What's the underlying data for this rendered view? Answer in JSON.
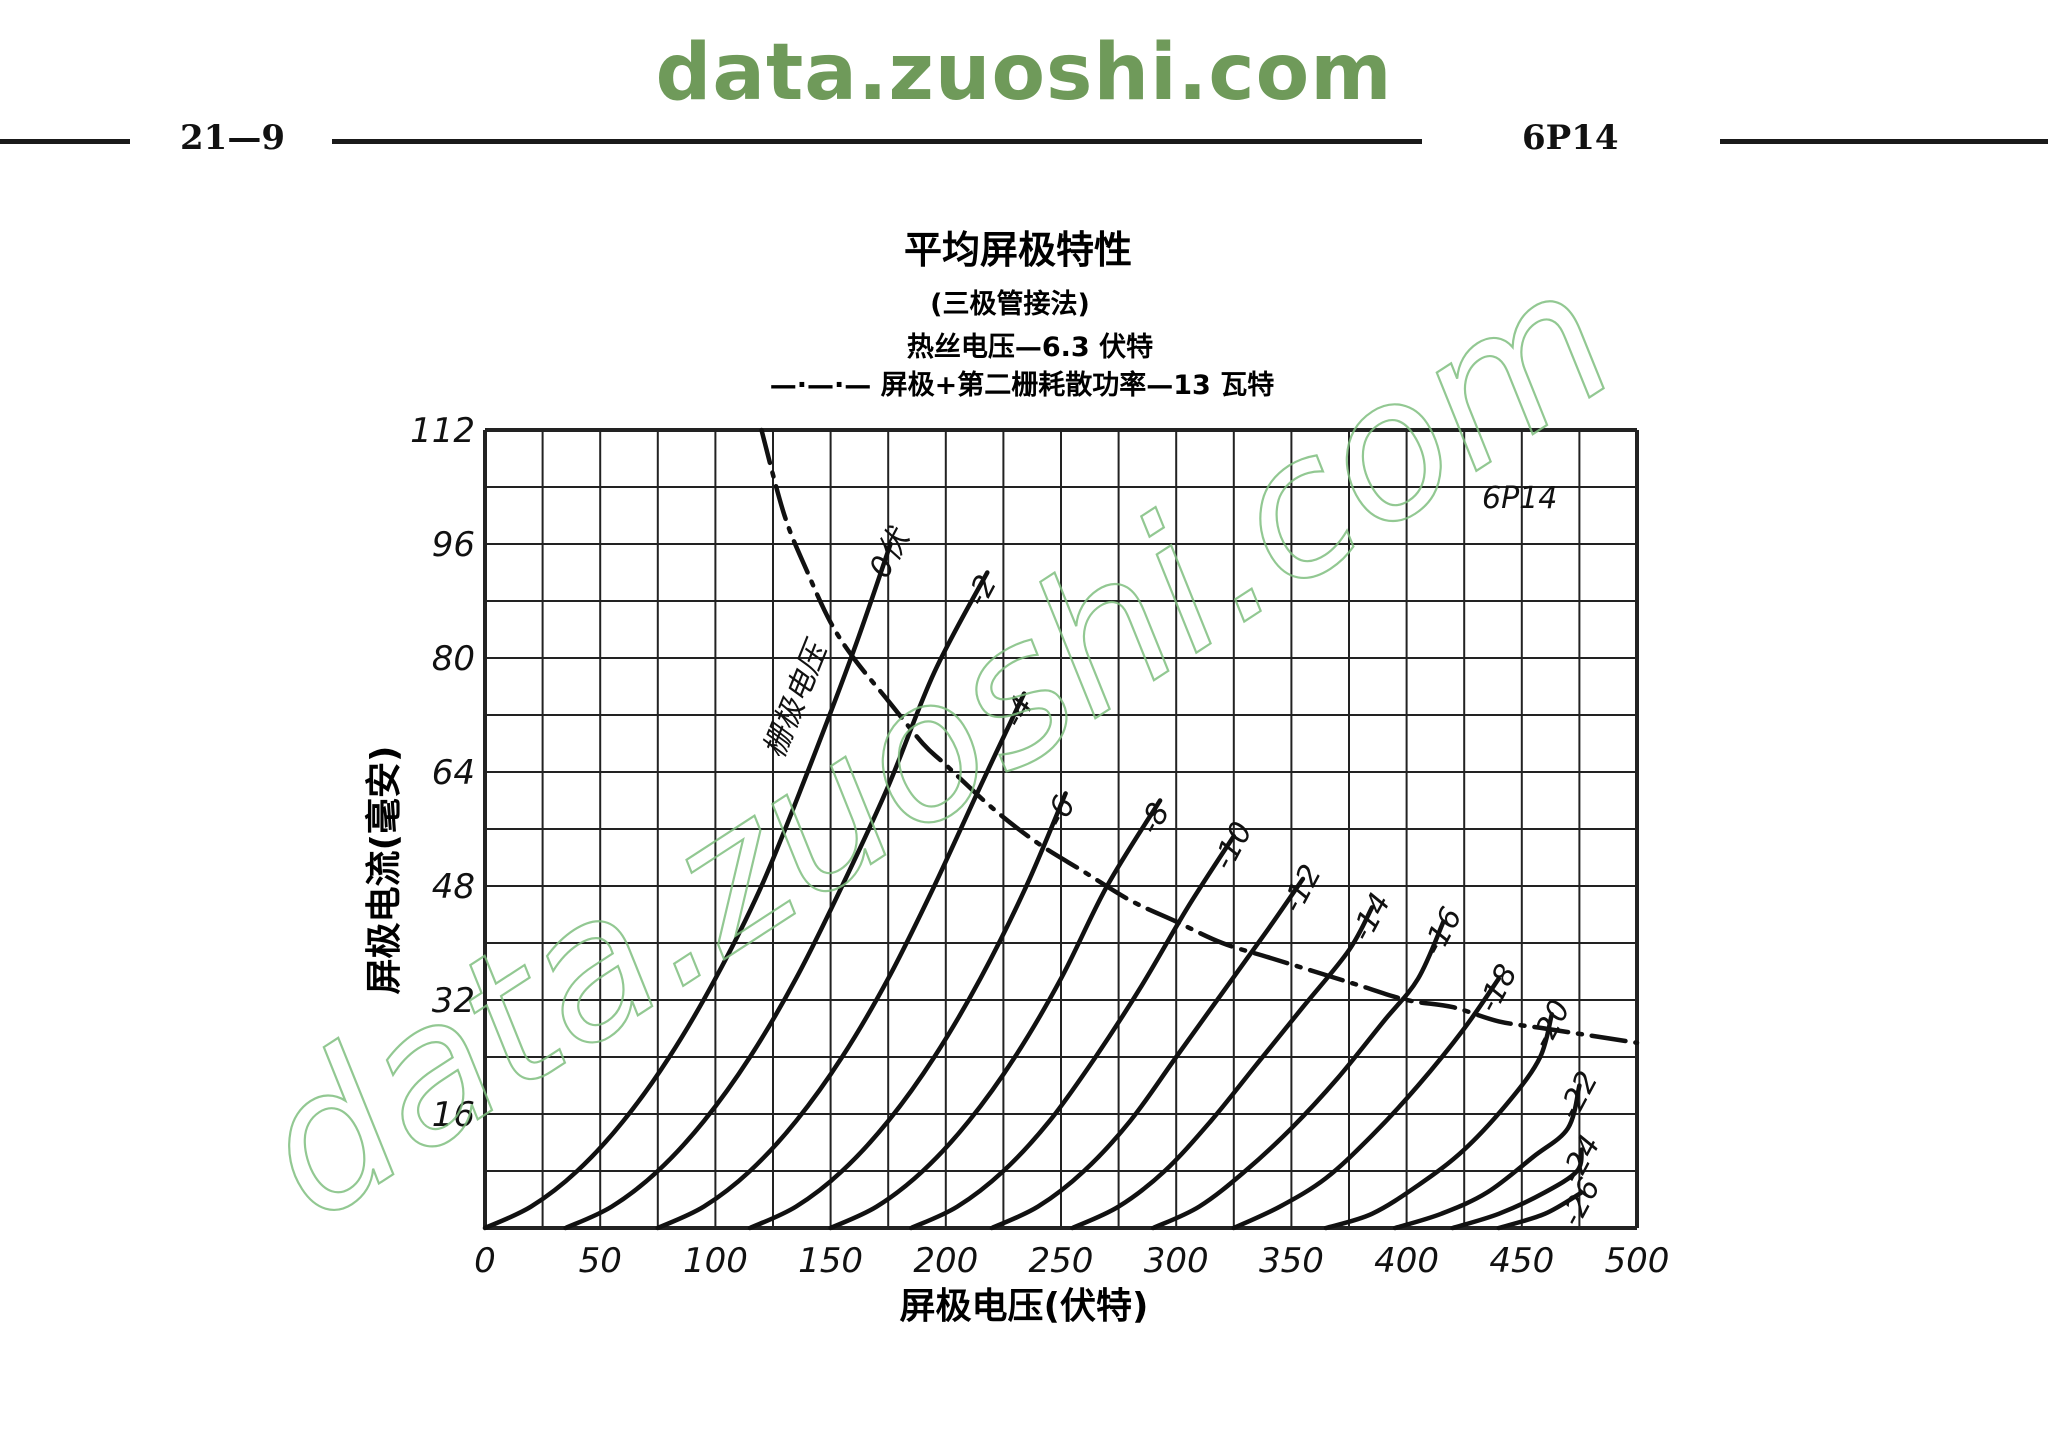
{
  "page": {
    "watermark_top": "data.zuoshi.com",
    "watermark_diagonal": "data.zuoshi.com",
    "page_number": "21—9",
    "tube_type": "6P14"
  },
  "chart_data": {
    "type": "line",
    "title": "平均屏极特性",
    "subtitle": "(三极管接法)",
    "note_heater": "热丝电压—6.3 伏特",
    "note_dissipation_legend": "—·—·— 屏极+第二栅耗散功率—13 瓦特",
    "tube_label": "6P14",
    "xlabel": "屏极电压(伏特)",
    "ylabel": "屏极电流(毫安)",
    "curve_family_label": "栅极电压",
    "xlim": [
      0,
      500
    ],
    "ylim": [
      0,
      112
    ],
    "x_ticks": [
      0,
      50,
      100,
      150,
      200,
      250,
      300,
      350,
      400,
      450,
      500
    ],
    "y_ticks": [
      16,
      32,
      48,
      64,
      80,
      96,
      112
    ],
    "grid": true,
    "series": [
      {
        "name": "0伏",
        "points": [
          [
            0,
            0
          ],
          [
            20,
            3
          ],
          [
            40,
            8
          ],
          [
            60,
            15
          ],
          [
            80,
            24
          ],
          [
            100,
            35
          ],
          [
            120,
            48
          ],
          [
            140,
            64
          ],
          [
            160,
            81
          ],
          [
            176,
            96
          ]
        ]
      },
      {
        "name": "-2",
        "points": [
          [
            35,
            0
          ],
          [
            55,
            3
          ],
          [
            75,
            8
          ],
          [
            95,
            15
          ],
          [
            115,
            24
          ],
          [
            135,
            35
          ],
          [
            155,
            48
          ],
          [
            175,
            62
          ],
          [
            195,
            78
          ],
          [
            218,
            92
          ]
        ]
      },
      {
        "name": "-4",
        "points": [
          [
            75,
            0
          ],
          [
            95,
            3
          ],
          [
            115,
            8
          ],
          [
            135,
            15
          ],
          [
            155,
            24
          ],
          [
            175,
            35
          ],
          [
            195,
            48
          ],
          [
            215,
            62
          ],
          [
            234,
            75
          ]
        ]
      },
      {
        "name": "-6",
        "points": [
          [
            115,
            0
          ],
          [
            135,
            3
          ],
          [
            155,
            8
          ],
          [
            175,
            15
          ],
          [
            195,
            24
          ],
          [
            215,
            35
          ],
          [
            235,
            48
          ],
          [
            252,
            61
          ]
        ]
      },
      {
        "name": "-8",
        "points": [
          [
            150,
            0
          ],
          [
            170,
            3
          ],
          [
            190,
            8
          ],
          [
            210,
            15
          ],
          [
            230,
            24
          ],
          [
            250,
            35
          ],
          [
            270,
            48
          ],
          [
            293,
            60
          ]
        ]
      },
      {
        "name": "-10",
        "points": [
          [
            185,
            0
          ],
          [
            205,
            3
          ],
          [
            225,
            8
          ],
          [
            245,
            15
          ],
          [
            265,
            24
          ],
          [
            285,
            34
          ],
          [
            305,
            45
          ],
          [
            325,
            55
          ]
        ]
      },
      {
        "name": "-12",
        "points": [
          [
            220,
            0
          ],
          [
            240,
            3
          ],
          [
            260,
            8
          ],
          [
            280,
            15
          ],
          [
            300,
            24
          ],
          [
            320,
            33
          ],
          [
            340,
            42
          ],
          [
            355,
            49
          ]
        ]
      },
      {
        "name": "-14",
        "points": [
          [
            255,
            0
          ],
          [
            275,
            3
          ],
          [
            295,
            8
          ],
          [
            315,
            15
          ],
          [
            335,
            23
          ],
          [
            355,
            31
          ],
          [
            375,
            39
          ],
          [
            385,
            45
          ]
        ]
      },
      {
        "name": "-16",
        "points": [
          [
            290,
            0
          ],
          [
            310,
            3
          ],
          [
            330,
            8
          ],
          [
            350,
            14
          ],
          [
            370,
            21
          ],
          [
            390,
            29
          ],
          [
            405,
            35
          ],
          [
            416,
            43
          ]
        ]
      },
      {
        "name": "-18",
        "points": [
          [
            325,
            0
          ],
          [
            345,
            3
          ],
          [
            365,
            7
          ],
          [
            385,
            13
          ],
          [
            405,
            20
          ],
          [
            425,
            28
          ],
          [
            440,
            35
          ]
        ]
      },
      {
        "name": "-20",
        "points": [
          [
            365,
            0
          ],
          [
            385,
            2
          ],
          [
            405,
            6
          ],
          [
            425,
            11
          ],
          [
            445,
            18
          ],
          [
            458,
            24
          ],
          [
            463,
            30
          ]
        ]
      },
      {
        "name": "-22",
        "points": [
          [
            395,
            0
          ],
          [
            415,
            2
          ],
          [
            435,
            5
          ],
          [
            455,
            10
          ],
          [
            470,
            14
          ],
          [
            475,
            20
          ]
        ]
      },
      {
        "name": "-24",
        "points": [
          [
            420,
            0
          ],
          [
            440,
            2
          ],
          [
            460,
            5
          ],
          [
            474,
            8
          ],
          [
            476,
            11
          ]
        ]
      },
      {
        "name": "-26",
        "points": [
          [
            440,
            0
          ],
          [
            460,
            2
          ],
          [
            476,
            5
          ]
        ]
      }
    ],
    "dissipation_curve": {
      "name": "屏极+第二栅耗散功率—13 瓦特",
      "points": [
        [
          120,
          112
        ],
        [
          130,
          100
        ],
        [
          140,
          92
        ],
        [
          150,
          85
        ],
        [
          160,
          80
        ],
        [
          175,
          74
        ],
        [
          190,
          68
        ],
        [
          200,
          65
        ],
        [
          220,
          59
        ],
        [
          240,
          54
        ],
        [
          260,
          50
        ],
        [
          280,
          46
        ],
        [
          300,
          43
        ],
        [
          320,
          40
        ],
        [
          340,
          38
        ],
        [
          360,
          36
        ],
        [
          380,
          34
        ],
        [
          400,
          32
        ],
        [
          420,
          31
        ],
        [
          440,
          29
        ],
        [
          460,
          28
        ],
        [
          480,
          27
        ],
        [
          500,
          26
        ]
      ]
    }
  }
}
